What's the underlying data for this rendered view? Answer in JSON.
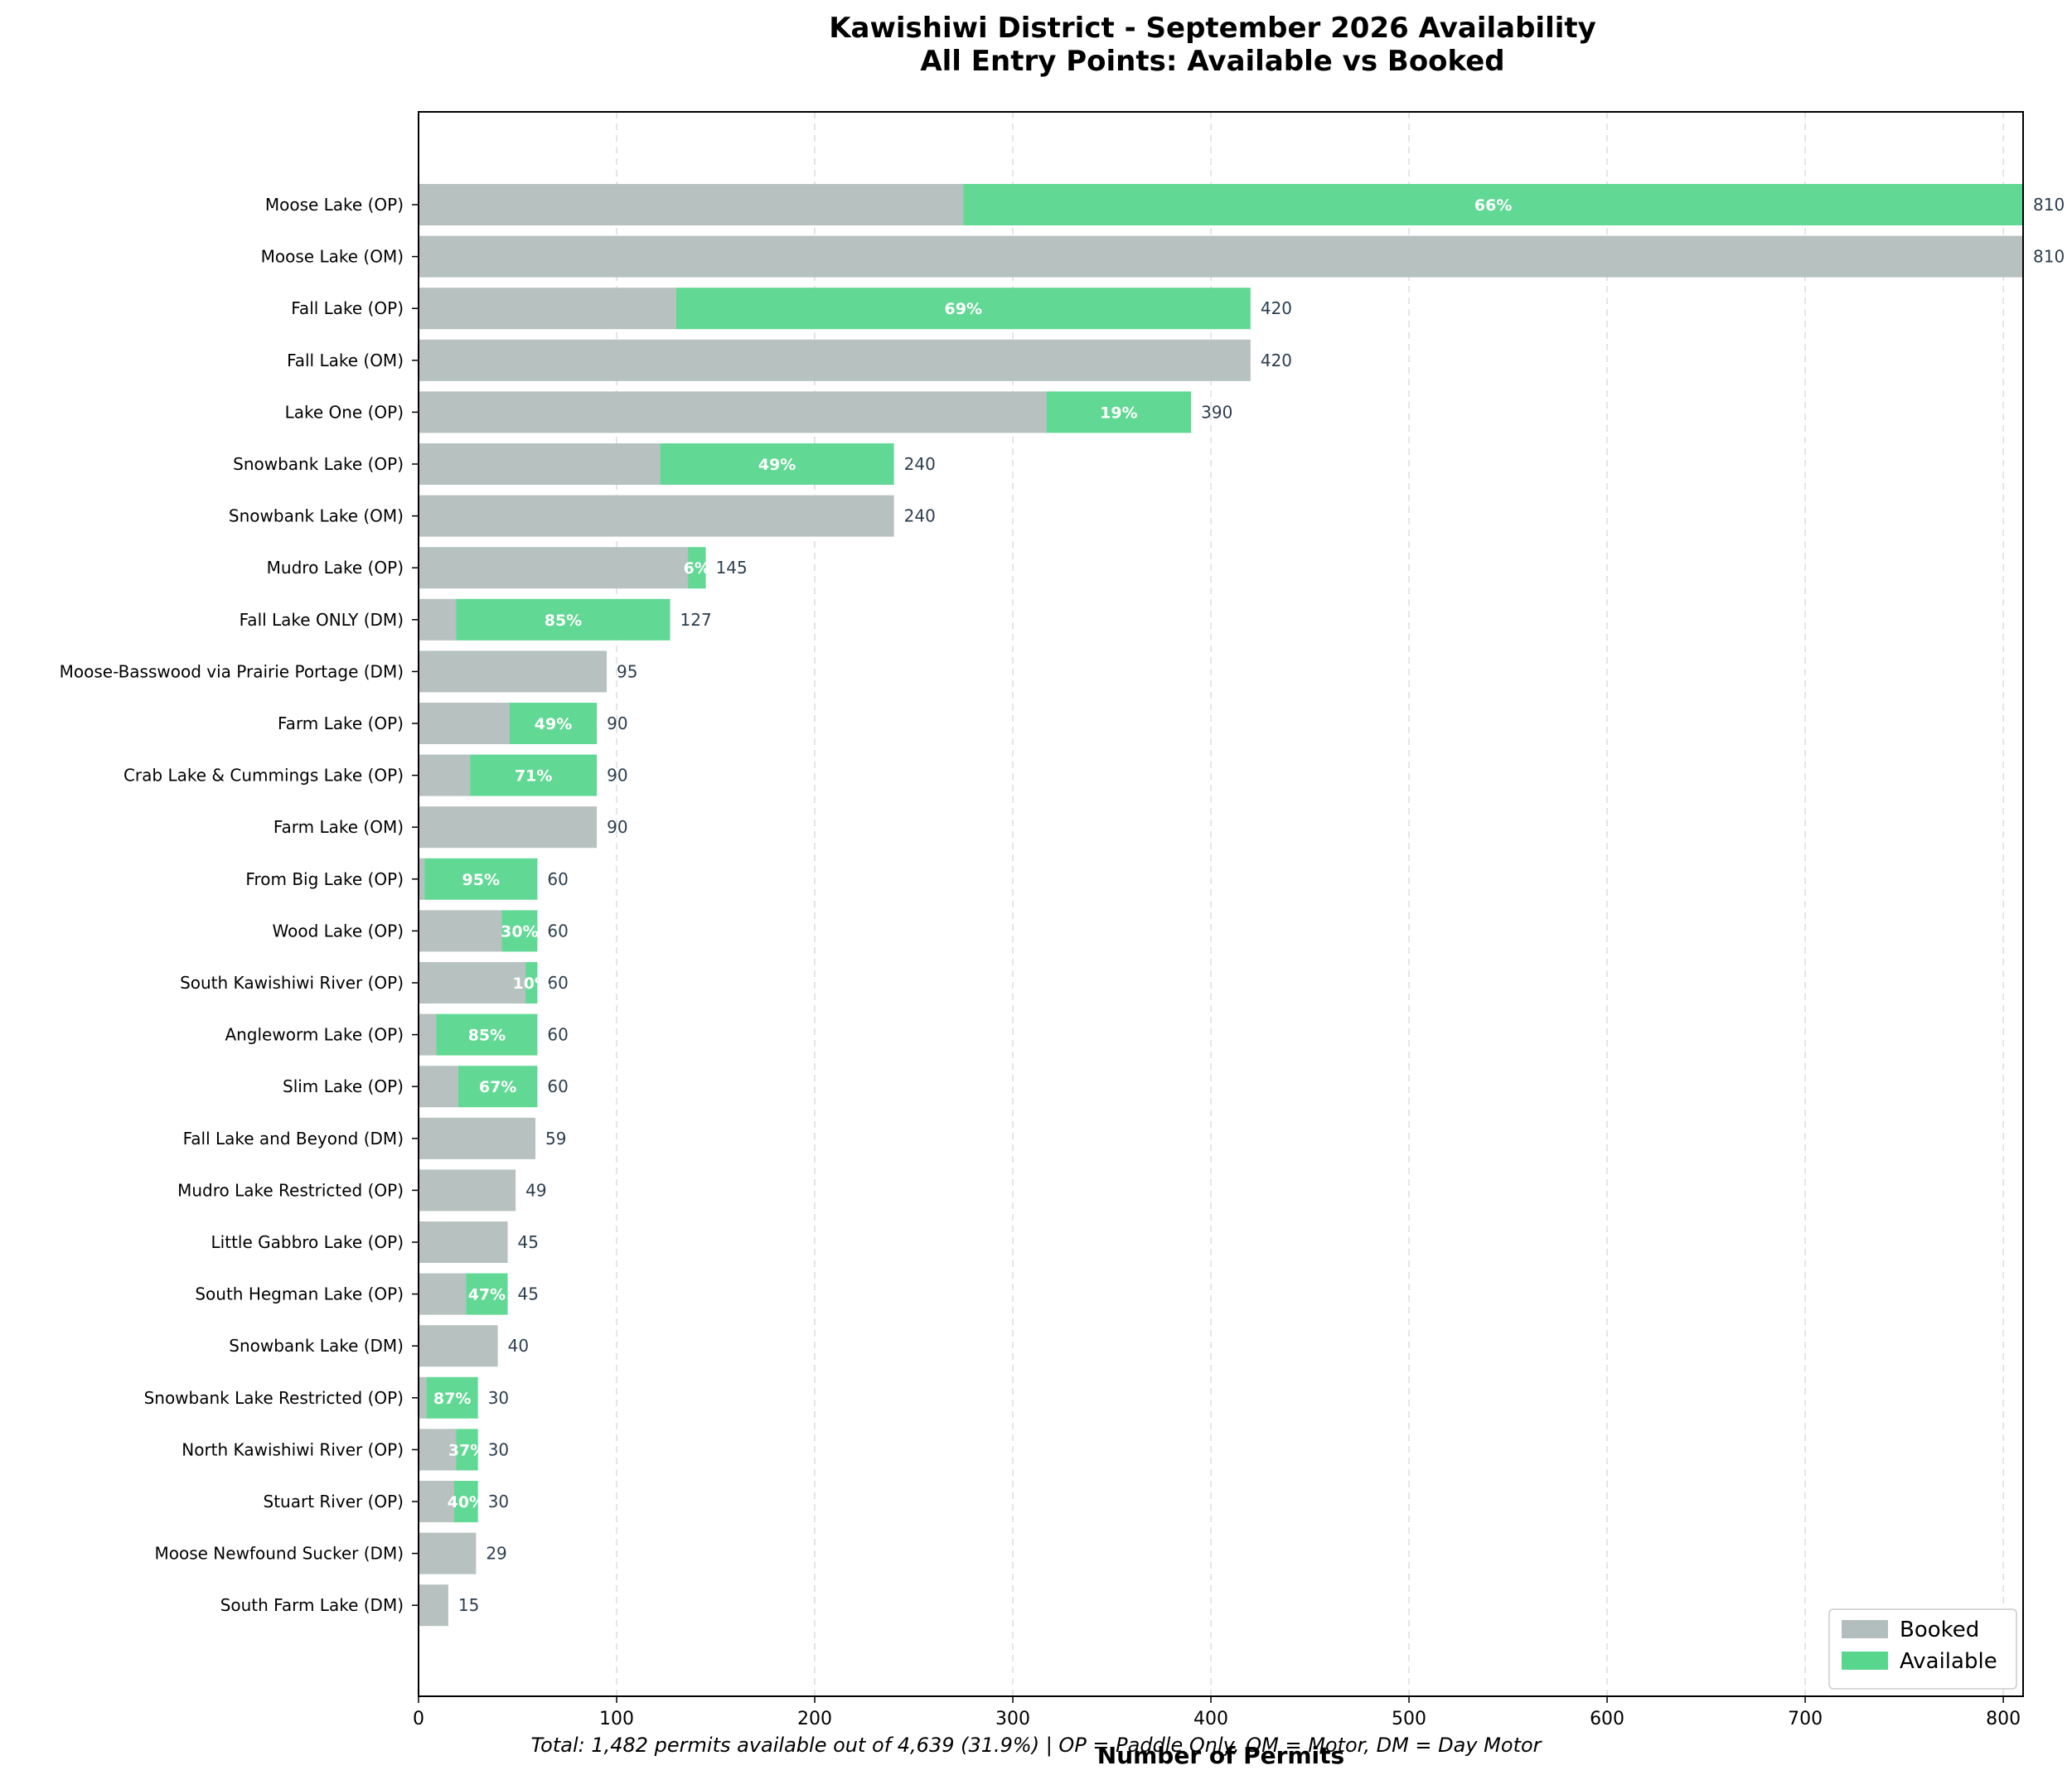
{
  "chart_data": {
    "type": "bar",
    "orientation": "horizontal",
    "stacked": true,
    "title": "Kawishiwi District - September 2026 Availability",
    "subtitle": "All Entry Points: Available vs Booked",
    "xlabel": "Number of Permits",
    "ylabel": "",
    "xlim": [
      0,
      810
    ],
    "xticks": [
      0,
      100,
      200,
      300,
      400,
      500,
      600,
      700,
      800
    ],
    "grid": "x, dashed",
    "legend_position": "bottom-right",
    "series": [
      {
        "name": "Booked",
        "color": "#b2bebd"
      },
      {
        "name": "Available",
        "color": "#58d68d"
      }
    ],
    "categories": [
      "Moose Lake (OP)",
      "Moose Lake (OM)",
      "Fall Lake (OP)",
      "Fall Lake (OM)",
      "Lake One (OP)",
      "Snowbank Lake (OP)",
      "Snowbank Lake (OM)",
      "Mudro Lake (OP)",
      "Fall Lake ONLY (DM)",
      "Moose-Basswood via Prairie Portage (DM)",
      "Farm Lake (OP)",
      "Crab Lake & Cummings Lake (OP)",
      "Farm Lake (OM)",
      "From Big Lake (OP)",
      "Wood Lake (OP)",
      "South Kawishiwi River (OP)",
      "Angleworm Lake (OP)",
      "Slim Lake (OP)",
      "Fall Lake and Beyond (DM)",
      "Mudro Lake Restricted (OP)",
      "Little Gabbro Lake (OP)",
      "South Hegman Lake (OP)",
      "Snowbank Lake (DM)",
      "Snowbank Lake Restricted (OP)",
      "North Kawishiwi River (OP)",
      "Stuart River (OP)",
      "Moose Newfound Sucker (DM)",
      "South Farm Lake (DM)"
    ],
    "totals": [
      810,
      810,
      420,
      420,
      390,
      240,
      240,
      145,
      127,
      95,
      90,
      90,
      90,
      60,
      60,
      60,
      60,
      60,
      59,
      49,
      45,
      45,
      40,
      30,
      30,
      30,
      29,
      15
    ],
    "available": [
      535,
      0,
      290,
      0,
      73,
      118,
      0,
      9,
      108,
      0,
      44,
      64,
      0,
      57,
      18,
      6,
      51,
      40,
      0,
      0,
      0,
      21,
      0,
      26,
      11,
      12,
      0,
      0
    ],
    "booked": [
      275,
      810,
      130,
      420,
      317,
      122,
      240,
      136,
      19,
      95,
      46,
      26,
      90,
      3,
      42,
      54,
      9,
      20,
      59,
      49,
      45,
      24,
      40,
      4,
      19,
      18,
      29,
      15
    ],
    "percent_labels": [
      "66%",
      "",
      "69%",
      "",
      "19%",
      "49%",
      "",
      "6%",
      "85%",
      "",
      "49%",
      "71%",
      "",
      "95%",
      "30%",
      "10%",
      "85%",
      "67%",
      "",
      "",
      "",
      "47%",
      "",
      "87%",
      "37%",
      "40%",
      "",
      ""
    ],
    "total_labels": [
      "810",
      "810",
      "420",
      "420",
      "390",
      "240",
      "240",
      "145",
      "127",
      "95",
      "90",
      "90",
      "90",
      "60",
      "60",
      "60",
      "60",
      "60",
      "59",
      "49",
      "45",
      "45",
      "40",
      "30",
      "30",
      "30",
      "29",
      "15"
    ],
    "footnote": "Total: 1,482 permits available out of 4,639 (31.9%) | OP = Paddle Only, OM = Motor, DM = Day Motor"
  }
}
